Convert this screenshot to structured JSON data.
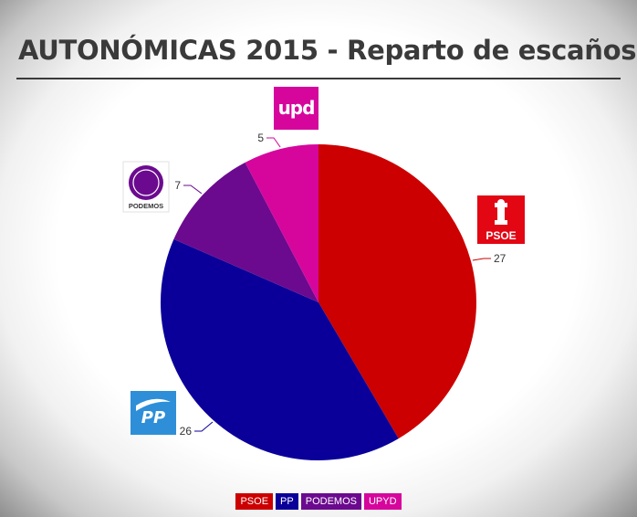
{
  "title": "AUTONÓMICAS 2015 - Reparto de escaños",
  "logos": {
    "upyd": "upd",
    "podemos": "PODEMOS",
    "psoe": "PSOE",
    "pp": "PP"
  },
  "chart_data": {
    "type": "pie",
    "title": "AUTONÓMICAS 2015 - Reparto de escaños",
    "start": "12 o'clock, clockwise",
    "slices": [
      {
        "label": "PSOE",
        "value": 27,
        "color": "#cc0000"
      },
      {
        "label": "PP",
        "value": 26,
        "color": "#0a0099"
      },
      {
        "label": "PODEMOS",
        "value": 7,
        "color": "#6b0a8f"
      },
      {
        "label": "UPYD",
        "value": 5,
        "color": "#d6069c"
      }
    ],
    "data_labels": [
      "27",
      "26",
      "7",
      "5"
    ],
    "legend": {
      "position": "bottom-center",
      "entries": [
        "PSOE",
        "PP",
        "PODEMOS",
        "UPYD"
      ]
    }
  }
}
